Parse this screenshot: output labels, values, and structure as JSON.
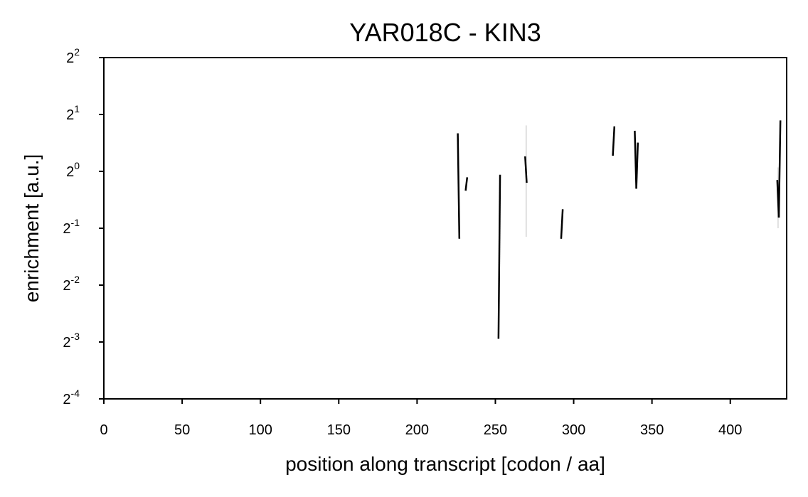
{
  "chart_data": {
    "type": "line",
    "title": "YAR018C - KIN3",
    "xlabel": "position along transcript [codon / aa]",
    "ylabel": "enrichment [a.u.]",
    "xlim": [
      0,
      436
    ],
    "ylim_log2": [
      -4,
      2
    ],
    "y_scale": "log2",
    "x_ticks": [
      0,
      50,
      100,
      150,
      200,
      250,
      300,
      350,
      400
    ],
    "y_ticks": [
      {
        "base": "2",
        "exp": "-4",
        "log2": -4
      },
      {
        "base": "2",
        "exp": "-3",
        "log2": -3
      },
      {
        "base": "2",
        "exp": "-2",
        "log2": -2
      },
      {
        "base": "2",
        "exp": "-1",
        "log2": -1
      },
      {
        "base": "2",
        "exp": "0",
        "log2": 0
      },
      {
        "base": "2",
        "exp": "1",
        "log2": 1
      },
      {
        "base": "2",
        "exp": "2",
        "log2": 2
      }
    ],
    "grid": false,
    "segments": [
      {
        "x": [
          226,
          227
        ],
        "y": [
          1.59,
          0.44
        ]
      },
      {
        "x": [
          231,
          232
        ],
        "y": [
          0.79,
          0.93
        ]
      },
      {
        "x": [
          252,
          253
        ],
        "y": [
          0.13,
          0.96
        ]
      },
      {
        "x": [
          269,
          270
        ],
        "y": [
          1.2,
          0.87
        ]
      },
      {
        "x": [
          292,
          293
        ],
        "y": [
          0.44,
          0.63
        ]
      },
      {
        "x": [
          325,
          326
        ],
        "y": [
          1.21,
          1.73
        ]
      },
      {
        "x": [
          339,
          340
        ],
        "y": [
          1.64,
          0.81
        ]
      },
      {
        "x": [
          340,
          341
        ],
        "y": [
          0.81,
          1.42
        ]
      },
      {
        "x": [
          430,
          431
        ],
        "y": [
          0.9,
          0.57
        ]
      },
      {
        "x": [
          431,
          432
        ],
        "y": [
          0.57,
          1.86
        ]
      }
    ],
    "bands": [
      {
        "x": 269.7,
        "y": [
          0.45,
          1.75
        ]
      },
      {
        "x": 430.5,
        "y": [
          0.5,
          1.05
        ]
      }
    ]
  }
}
